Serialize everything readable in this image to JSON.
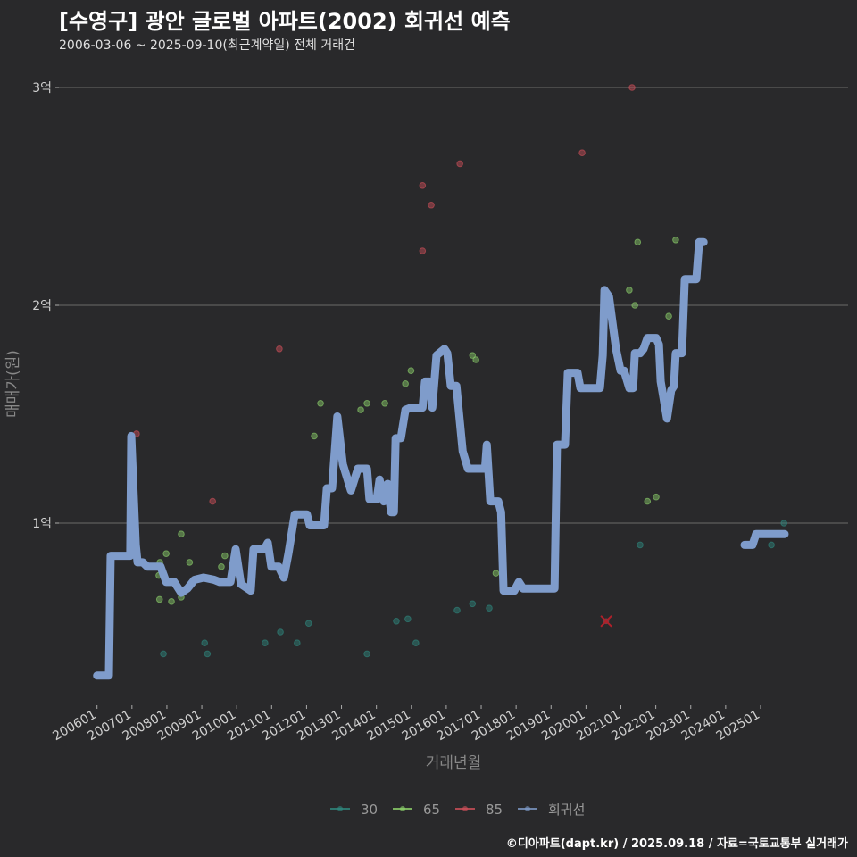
{
  "title": "[수영구] 광안 글로벌 아파트(2002) 회귀선 예측",
  "subtitle": "2006-03-06 ~ 2025-09-10(최근계약일) 전체 거래건",
  "credit": "©디아파트(dapt.kr) / 2025.09.18 / 자료=국토교통부 실거래가",
  "chart_data": {
    "type": "scatter+line",
    "xlabel": "거래년월",
    "ylabel": "매매가(원)",
    "ylim": [
      0.2,
      3.1
    ],
    "xlim": [
      2005.6,
      2026.3
    ],
    "yticks": [
      {
        "v": 1,
        "label": "1억"
      },
      {
        "v": 2,
        "label": "2억"
      },
      {
        "v": 3,
        "label": "3억"
      }
    ],
    "xticks": [
      "200601",
      "200701",
      "200801",
      "200901",
      "201001",
      "201101",
      "201201",
      "201301",
      "201401",
      "201501",
      "201601",
      "201701",
      "201801",
      "201901",
      "202001",
      "202101",
      "202201",
      "202301",
      "202401",
      "202501"
    ],
    "legend_position": "bottom",
    "colors": {
      "30": "#2f8a80",
      "65": "#8ed36c",
      "85": "#d0505a",
      "regression": "#7f9ccb"
    },
    "legend": [
      {
        "key": "30",
        "label": "30"
      },
      {
        "key": "65",
        "label": "65"
      },
      {
        "key": "85",
        "label": "85"
      },
      {
        "key": "regression",
        "label": "회귀선"
      }
    ],
    "regression": [
      [
        [
          2006.0,
          0.3
        ],
        [
          2006.34,
          0.3
        ],
        [
          2006.39,
          0.85
        ],
        [
          2006.95,
          0.85
        ],
        [
          2006.98,
          1.4
        ],
        [
          2007.11,
          0.9
        ],
        [
          2007.16,
          0.82
        ],
        [
          2007.31,
          0.82
        ],
        [
          2007.44,
          0.8
        ],
        [
          2007.82,
          0.8
        ],
        [
          2007.98,
          0.73
        ],
        [
          2008.21,
          0.73
        ],
        [
          2008.41,
          0.68
        ],
        [
          2008.59,
          0.7
        ],
        [
          2008.79,
          0.74
        ],
        [
          2009.05,
          0.75
        ],
        [
          2009.35,
          0.74
        ],
        [
          2009.51,
          0.73
        ],
        [
          2009.82,
          0.73
        ],
        [
          2009.97,
          0.88
        ],
        [
          2010.12,
          0.72
        ],
        [
          2010.4,
          0.69
        ],
        [
          2010.48,
          0.88
        ],
        [
          2010.79,
          0.88
        ],
        [
          2010.89,
          0.91
        ],
        [
          2010.99,
          0.8
        ],
        [
          2011.2,
          0.8
        ],
        [
          2011.35,
          0.75
        ],
        [
          2011.48,
          0.86
        ],
        [
          2011.66,
          1.04
        ],
        [
          2012.01,
          1.04
        ],
        [
          2012.09,
          0.99
        ],
        [
          2012.5,
          0.99
        ],
        [
          2012.58,
          1.16
        ],
        [
          2012.73,
          1.16
        ],
        [
          2012.88,
          1.49
        ],
        [
          2013.04,
          1.27
        ],
        [
          2013.27,
          1.15
        ],
        [
          2013.47,
          1.25
        ],
        [
          2013.73,
          1.25
        ],
        [
          2013.8,
          1.11
        ],
        [
          2014.01,
          1.11
        ],
        [
          2014.09,
          1.2
        ],
        [
          2014.21,
          1.1
        ],
        [
          2014.32,
          1.18
        ],
        [
          2014.42,
          1.05
        ],
        [
          2014.5,
          1.05
        ],
        [
          2014.55,
          1.39
        ],
        [
          2014.7,
          1.39
        ],
        [
          2014.83,
          1.52
        ],
        [
          2014.99,
          1.53
        ],
        [
          2015.32,
          1.53
        ],
        [
          2015.39,
          1.65
        ],
        [
          2015.52,
          1.65
        ],
        [
          2015.6,
          1.53
        ],
        [
          2015.72,
          1.77
        ],
        [
          2015.95,
          1.8
        ],
        [
          2016.03,
          1.78
        ],
        [
          2016.13,
          1.63
        ],
        [
          2016.29,
          1.63
        ],
        [
          2016.47,
          1.33
        ],
        [
          2016.62,
          1.25
        ],
        [
          2017.11,
          1.25
        ],
        [
          2017.16,
          1.36
        ],
        [
          2017.26,
          1.1
        ],
        [
          2017.49,
          1.1
        ],
        [
          2017.57,
          1.05
        ],
        [
          2017.64,
          0.69
        ],
        [
          2017.95,
          0.69
        ],
        [
          2018.08,
          0.73
        ],
        [
          2018.2,
          0.7
        ],
        [
          2019.1,
          0.7
        ],
        [
          2019.17,
          1.36
        ],
        [
          2019.4,
          1.36
        ],
        [
          2019.48,
          1.69
        ],
        [
          2019.76,
          1.69
        ],
        [
          2019.84,
          1.62
        ],
        [
          2020.4,
          1.62
        ],
        [
          2020.48,
          1.77
        ],
        [
          2020.53,
          2.07
        ],
        [
          2020.66,
          2.04
        ],
        [
          2020.86,
          1.8
        ],
        [
          2020.99,
          1.7
        ],
        [
          2021.09,
          1.7
        ],
        [
          2021.24,
          1.62
        ],
        [
          2021.35,
          1.62
        ],
        [
          2021.4,
          1.78
        ],
        [
          2021.55,
          1.78
        ],
        [
          2021.65,
          1.8
        ],
        [
          2021.76,
          1.85
        ],
        [
          2022.01,
          1.85
        ],
        [
          2022.09,
          1.82
        ],
        [
          2022.14,
          1.65
        ],
        [
          2022.32,
          1.48
        ],
        [
          2022.44,
          1.61
        ],
        [
          2022.52,
          1.63
        ],
        [
          2022.57,
          1.78
        ],
        [
          2022.75,
          1.78
        ],
        [
          2022.83,
          2.12
        ],
        [
          2023.16,
          2.12
        ],
        [
          2023.24,
          2.29
        ],
        [
          2023.37,
          2.29
        ]
      ],
      [
        [
          2024.54,
          0.9
        ],
        [
          2024.77,
          0.9
        ],
        [
          2024.87,
          0.95
        ],
        [
          2025.69,
          0.95
        ]
      ]
    ],
    "series": [
      {
        "name": "30",
        "points": [
          [
            2007.9,
            0.4
          ],
          [
            2009.08,
            0.45
          ],
          [
            2009.16,
            0.4
          ],
          [
            2010.81,
            0.45
          ],
          [
            2011.25,
            0.5
          ],
          [
            2011.73,
            0.45
          ],
          [
            2012.06,
            0.54
          ],
          [
            2013.73,
            0.4
          ],
          [
            2014.57,
            0.55
          ],
          [
            2014.9,
            0.56
          ],
          [
            2015.13,
            0.45
          ],
          [
            2016.31,
            0.6
          ],
          [
            2016.75,
            0.63
          ],
          [
            2017.23,
            0.61
          ],
          [
            2021.55,
            0.9
          ],
          [
            2025.31,
            0.9
          ],
          [
            2025.67,
            1.0
          ]
        ]
      },
      {
        "name": "65",
        "points": [
          [
            2007.8,
            0.82
          ],
          [
            2007.98,
            0.86
          ],
          [
            2007.77,
            0.76
          ],
          [
            2007.79,
            0.65
          ],
          [
            2008.13,
            0.64
          ],
          [
            2008.41,
            0.95
          ],
          [
            2008.41,
            0.66
          ],
          [
            2008.65,
            0.82
          ],
          [
            2009.56,
            0.8
          ],
          [
            2009.66,
            0.85
          ],
          [
            2012.22,
            1.4
          ],
          [
            2012.4,
            1.55
          ],
          [
            2013.55,
            1.52
          ],
          [
            2013.73,
            1.55
          ],
          [
            2014.24,
            1.55
          ],
          [
            2014.83,
            1.64
          ],
          [
            2014.99,
            1.7
          ],
          [
            2016.75,
            1.77
          ],
          [
            2016.85,
            1.75
          ],
          [
            2017.42,
            0.77
          ],
          [
            2021.24,
            2.07
          ],
          [
            2021.4,
            2.0
          ],
          [
            2021.48,
            2.29
          ],
          [
            2022.37,
            1.95
          ],
          [
            2022.57,
            2.3
          ],
          [
            2021.76,
            1.1
          ],
          [
            2022.01,
            1.12
          ]
        ]
      },
      {
        "name": "85",
        "points": [
          [
            2007.13,
            1.41
          ],
          [
            2009.31,
            1.1
          ],
          [
            2011.22,
            1.8
          ],
          [
            2015.32,
            2.55
          ],
          [
            2015.32,
            2.25
          ],
          [
            2015.57,
            2.46
          ],
          [
            2016.39,
            2.65
          ],
          [
            2019.89,
            2.7
          ],
          [
            2021.32,
            3.0
          ]
        ],
        "cancelled": [
          [
            2020.58,
            0.55
          ]
        ]
      }
    ]
  }
}
